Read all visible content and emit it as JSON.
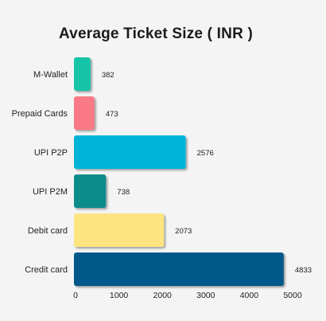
{
  "chart_data": {
    "type": "bar",
    "orientation": "horizontal",
    "title": "Average Ticket Size ( INR )",
    "xlabel": "",
    "ylabel": "",
    "categories": [
      "M-Wallet",
      "Prepaid Cards",
      "UPI P2P",
      "UPI P2M",
      "Debit card",
      "Credit card"
    ],
    "values": [
      382,
      473,
      2576,
      738,
      2073,
      4833
    ],
    "xlim": [
      0,
      5000
    ],
    "xticks": [
      0,
      1000,
      2000,
      3000,
      4000,
      5000
    ],
    "colors": [
      "#13c4a8",
      "#f97a86",
      "#00b4d8",
      "#0b8c8c",
      "#fde47f",
      "#03588a"
    ],
    "grid": false,
    "legend": "none"
  }
}
